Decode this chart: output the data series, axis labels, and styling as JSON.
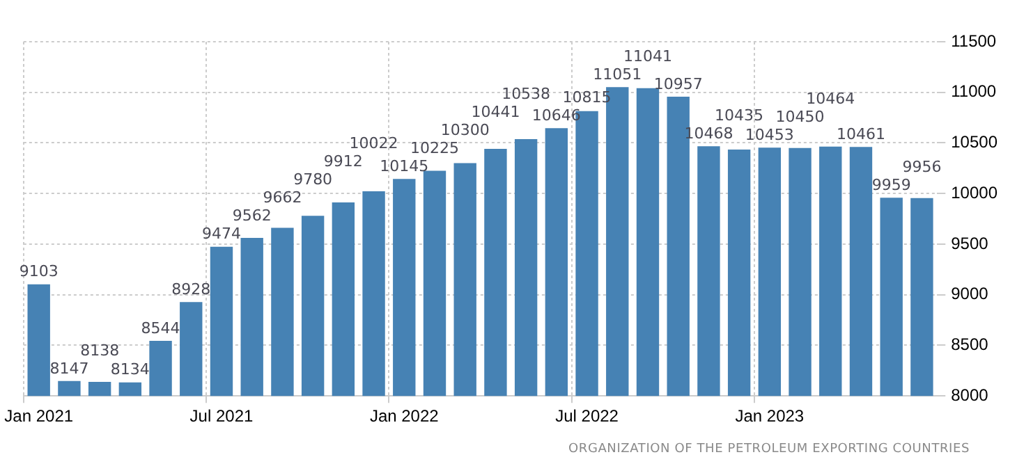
{
  "chart_data": {
    "type": "bar",
    "categories": [
      "Jan 2021",
      null,
      null,
      null,
      null,
      null,
      "Jul 2021",
      null,
      null,
      null,
      null,
      null,
      "Jan 2022",
      null,
      null,
      null,
      null,
      null,
      "Jul 2022",
      null,
      null,
      null,
      null,
      null,
      "Jan 2023",
      null,
      null,
      null,
      null,
      null
    ],
    "values": [
      9103,
      8147,
      8138,
      8134,
      8544,
      8928,
      9474,
      9562,
      9662,
      9780,
      9912,
      10022,
      10145,
      10225,
      10300,
      10441,
      10538,
      10646,
      10815,
      11051,
      11041,
      10957,
      10468,
      10435,
      10453,
      10450,
      10464,
      10461,
      9959,
      9956
    ],
    "color": "#4682b4",
    "ylim": [
      8000,
      11500
    ],
    "yticks": [
      8000,
      8500,
      9000,
      9500,
      10000,
      10500,
      11000,
      11500
    ],
    "grid": true,
    "data_labels": true,
    "annotations": [
      "ORGANIZATION OF THE PETROLEUM EXPORTING COUNTRIES"
    ]
  }
}
